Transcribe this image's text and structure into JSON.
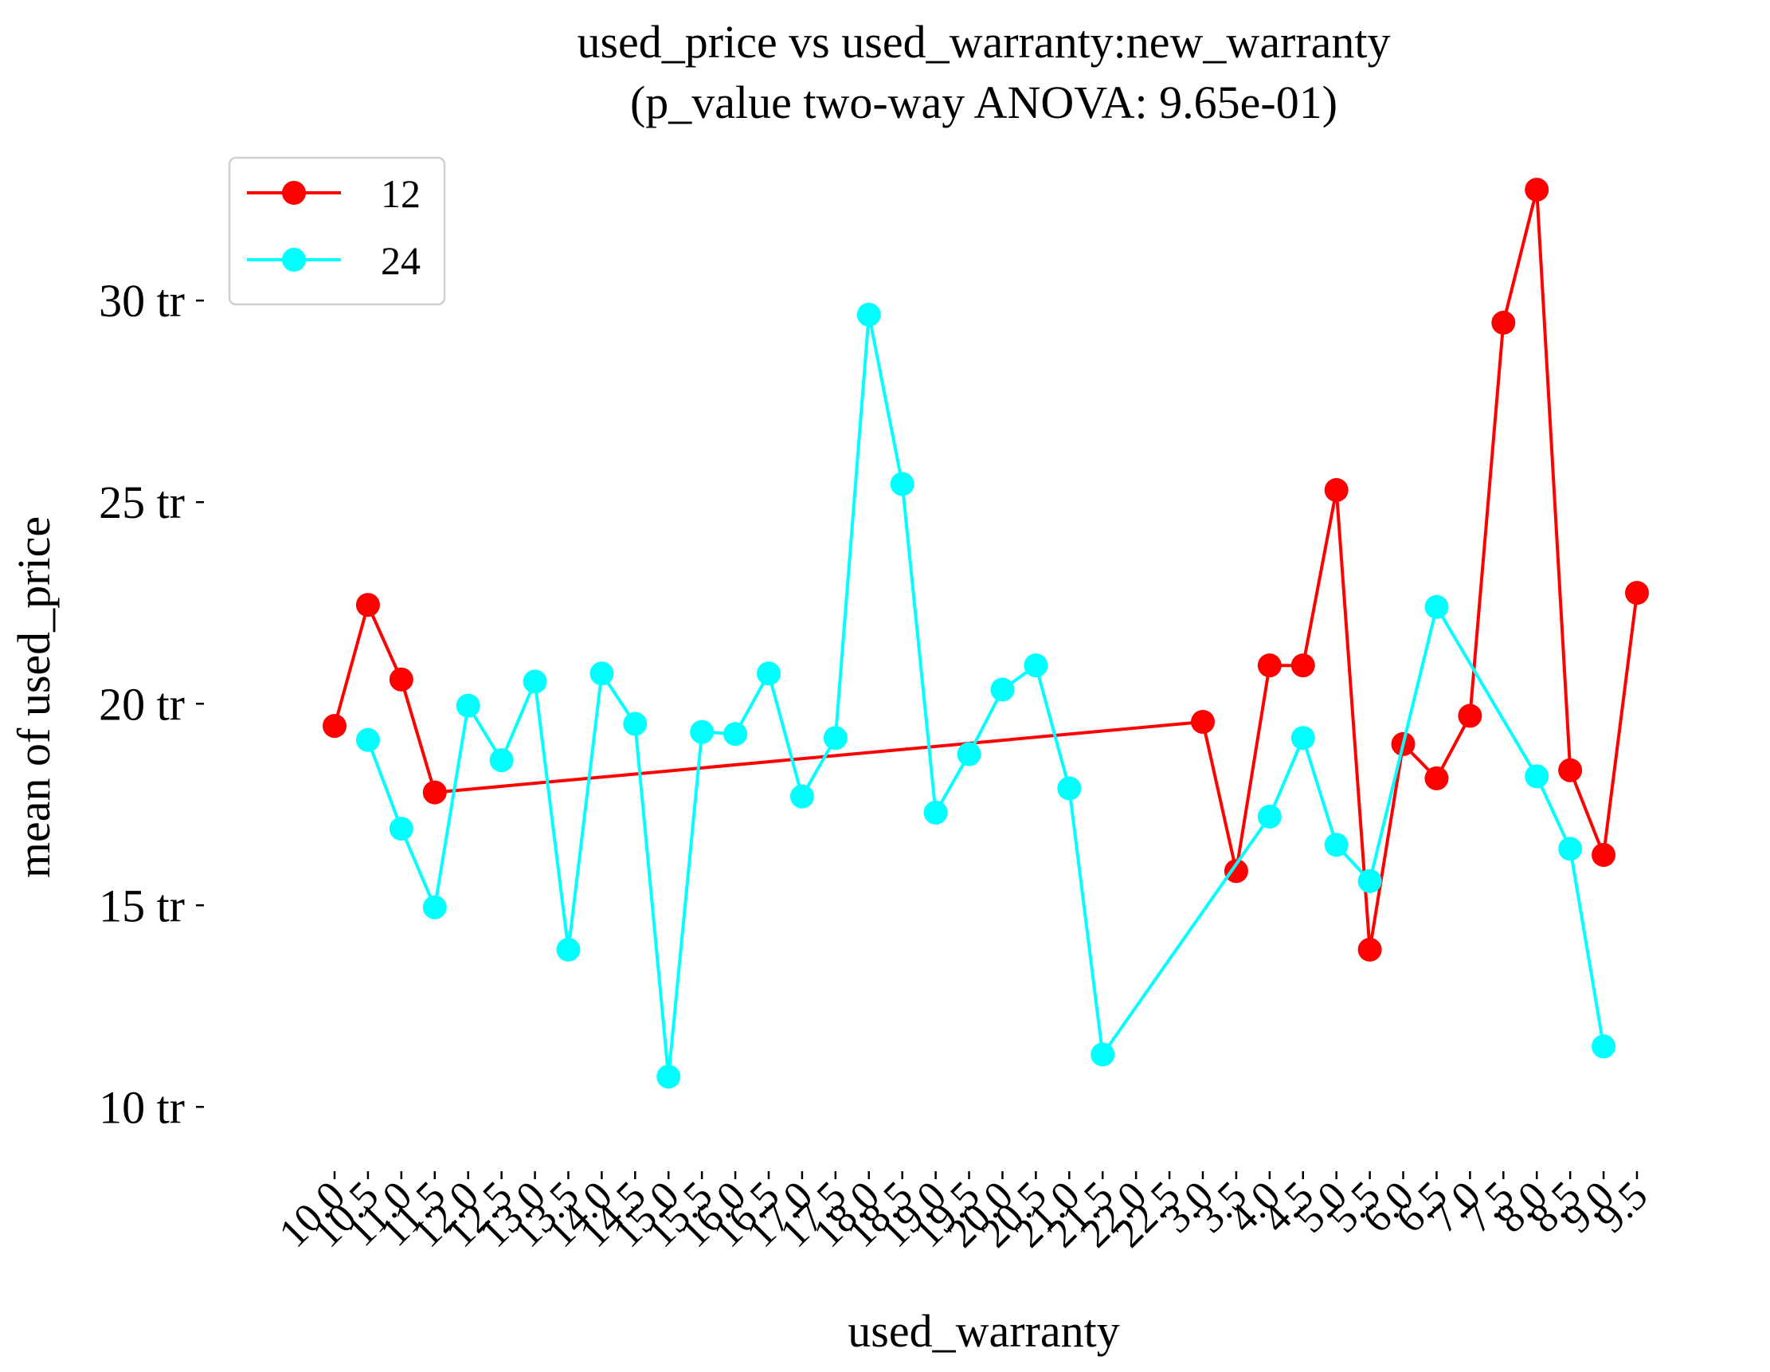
{
  "chart_data": {
    "type": "line",
    "title": "used_price vs used_warranty:new_warranty",
    "subtitle": "(p_value two-way ANOVA: 9.65e-01)",
    "xlabel": "used_warranty",
    "ylabel": "mean of used_price",
    "categories": [
      "10.0",
      "10.5",
      "11.0",
      "11.5",
      "12.0",
      "12.5",
      "13.0",
      "13.5",
      "14.0",
      "14.5",
      "15.0",
      "15.5",
      "16.0",
      "16.5",
      "17.0",
      "17.5",
      "18.0",
      "18.5",
      "19.0",
      "19.5",
      "20.0",
      "20.5",
      "21.0",
      "21.5",
      "22.0",
      "22.5",
      "3.0",
      "3.5",
      "4.0",
      "4.5",
      "5.0",
      "5.5",
      "6.0",
      "6.5",
      "7.0",
      "7.5",
      "8.0",
      "8.5",
      "9.0",
      "9.5"
    ],
    "xtick_labels": [
      "10.0",
      "10.5",
      "11.0",
      "11.5",
      "12.0",
      "12.5",
      "13.0",
      "13.5",
      "14.0",
      "14.5",
      "15.0",
      "15.5",
      "16.0",
      "16.5",
      "17.0",
      "17.5",
      "18.0",
      "18.5",
      "19.0",
      "19.5",
      "20.0",
      "20.5",
      "21.0",
      "21.5",
      "22.0",
      "22.5",
      "3.0",
      "3.5",
      "4.0",
      "4.5",
      "5.0",
      "5.5",
      "6.0",
      "6.5",
      "7.0",
      "7.5",
      "8.0",
      "8.5",
      "9.0",
      "9.5"
    ],
    "yticks": [
      10,
      15,
      20,
      25,
      30
    ],
    "ytick_labels": [
      "10 tr",
      "15 tr",
      "20 tr",
      "25 tr",
      "30 tr"
    ],
    "ylim": [
      8.8,
      33.7
    ],
    "grid": false,
    "legend_position": "top-left",
    "series": [
      {
        "name": "12",
        "color": "#ff0000",
        "values": [
          19.45,
          22.45,
          20.6,
          17.8,
          null,
          null,
          null,
          null,
          null,
          null,
          null,
          null,
          null,
          null,
          null,
          null,
          null,
          null,
          null,
          null,
          null,
          null,
          null,
          null,
          null,
          null,
          19.55,
          15.85,
          20.95,
          20.95,
          25.3,
          13.9,
          19.0,
          18.15,
          19.7,
          29.45,
          32.75,
          18.35,
          16.25,
          22.75
        ]
      },
      {
        "name": "24",
        "color": "#00ffff",
        "values": [
          null,
          19.1,
          16.9,
          14.95,
          19.95,
          18.6,
          20.55,
          13.9,
          20.75,
          19.5,
          10.75,
          19.3,
          19.25,
          20.75,
          17.7,
          19.15,
          29.65,
          25.45,
          17.3,
          18.75,
          20.35,
          20.95,
          17.9,
          11.3,
          null,
          null,
          null,
          null,
          17.2,
          19.15,
          16.5,
          15.6,
          null,
          22.4,
          null,
          null,
          18.2,
          16.4,
          11.5,
          null
        ]
      }
    ]
  }
}
